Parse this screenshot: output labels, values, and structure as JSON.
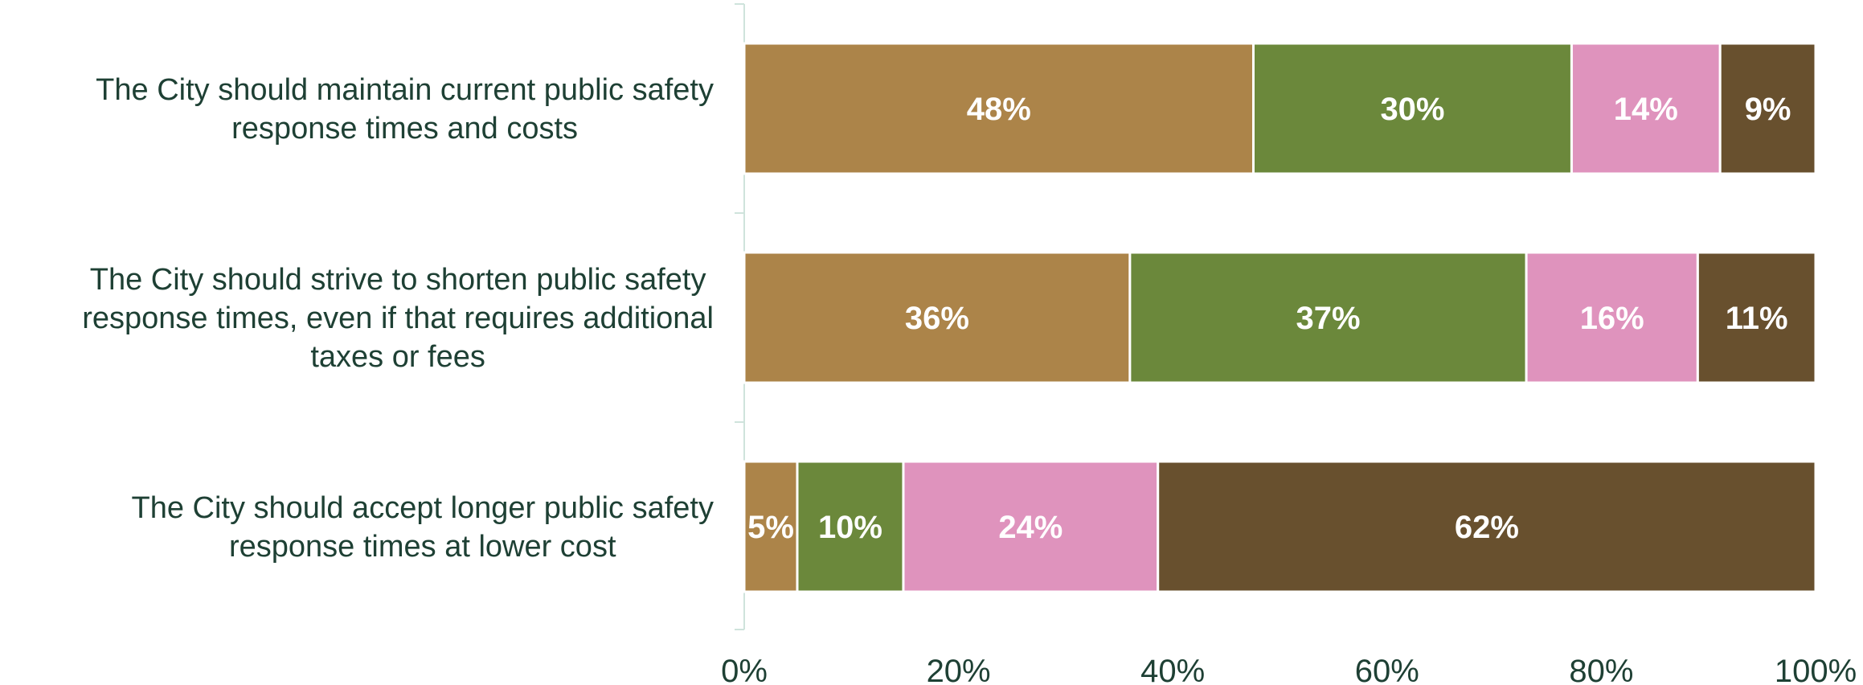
{
  "chart_data": {
    "type": "bar",
    "orientation": "horizontal",
    "stacked": "100%",
    "title": "",
    "xlabel": "",
    "ylabel": "",
    "categories": [
      [
        "The City should maintain current public safety",
        "response times and costs"
      ],
      [
        "The City should strive to shorten public safety",
        "response times, even if that requires additional",
        "taxes or fees"
      ],
      [
        "The City should accept longer public safety",
        "response times at lower cost"
      ]
    ],
    "series": [
      {
        "color": "#ac8449",
        "values": [
          48,
          36,
          5
        ]
      },
      {
        "color": "#6b883b",
        "values": [
          30,
          37,
          10
        ]
      },
      {
        "color": "#df93bd",
        "values": [
          14,
          16,
          24
        ]
      },
      {
        "color": "#68502e",
        "values": [
          9,
          11,
          62
        ]
      }
    ],
    "data_labels": [
      [
        "48%",
        "30%",
        "14%",
        "9%"
      ],
      [
        "36%",
        "37%",
        "16%",
        "11%"
      ],
      [
        "5%",
        "10%",
        "24%",
        "62%"
      ]
    ],
    "xlim": [
      0,
      100
    ],
    "xticks": [
      "0%",
      "20%",
      "40%",
      "60%",
      "80%",
      "100%"
    ],
    "grid": false,
    "legend": "none",
    "colors": {
      "text": "#1e4034",
      "axis": "#cfe3dc",
      "label": "#ffffff"
    }
  }
}
